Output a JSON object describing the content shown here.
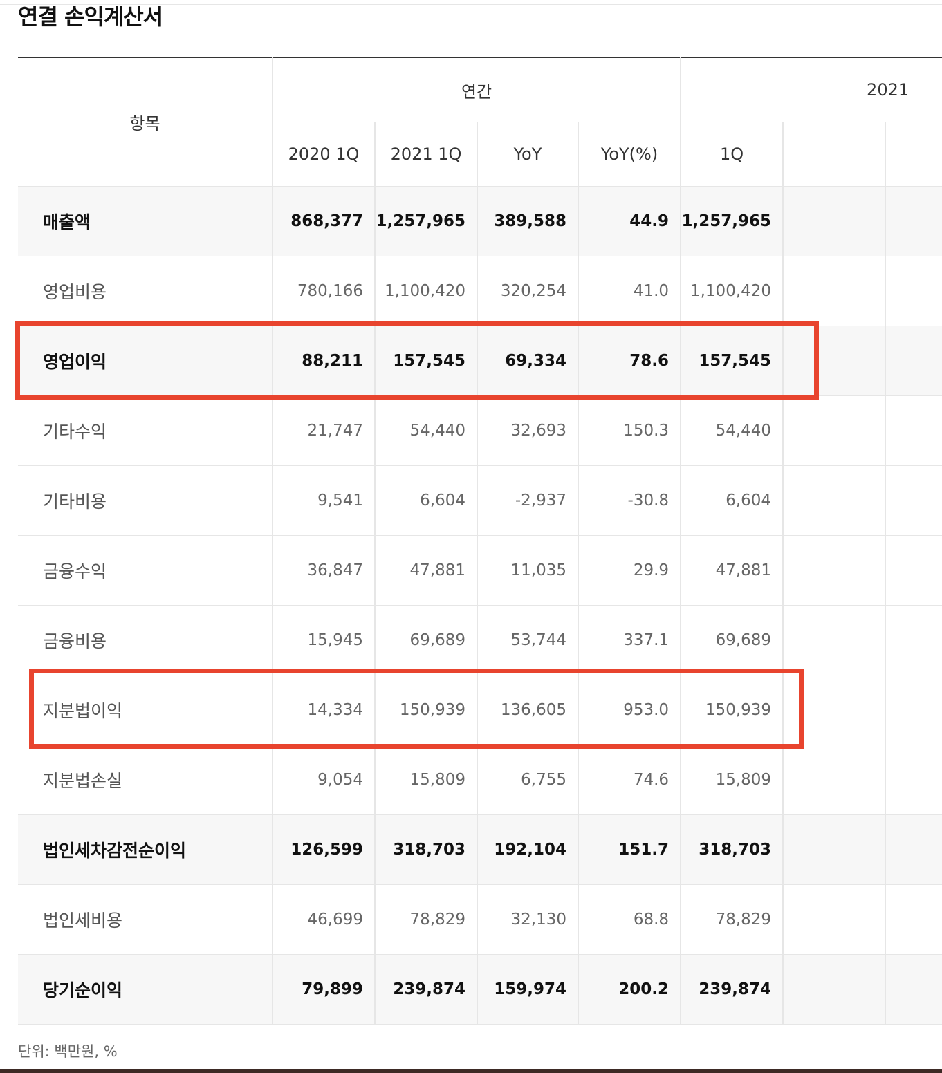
{
  "title": "연결 손익계산서",
  "header": {
    "item_label": "항목",
    "group_annual": "연간",
    "group_2021": "2021",
    "columns": [
      "2020 1Q",
      "2021 1Q",
      "YoY",
      "YoY(%)",
      "1Q"
    ]
  },
  "rows": [
    {
      "label": "매출액",
      "values": [
        "868,377",
        "1,257,965",
        "389,588",
        "44.9",
        "1,257,965"
      ],
      "emphasis": true
    },
    {
      "label": "영업비용",
      "values": [
        "780,166",
        "1,100,420",
        "320,254",
        "41.0",
        "1,100,420"
      ],
      "emphasis": false
    },
    {
      "label": "영업이익",
      "values": [
        "88,211",
        "157,545",
        "69,334",
        "78.6",
        "157,545"
      ],
      "emphasis": true,
      "highlighted": true
    },
    {
      "label": "기타수익",
      "values": [
        "21,747",
        "54,440",
        "32,693",
        "150.3",
        "54,440"
      ],
      "emphasis": false
    },
    {
      "label": "기타비용",
      "values": [
        "9,541",
        "6,604",
        "-2,937",
        "-30.8",
        "6,604"
      ],
      "emphasis": false
    },
    {
      "label": "금융수익",
      "values": [
        "36,847",
        "47,881",
        "11,035",
        "29.9",
        "47,881"
      ],
      "emphasis": false
    },
    {
      "label": "금융비용",
      "values": [
        "15,945",
        "69,689",
        "53,744",
        "337.1",
        "69,689"
      ],
      "emphasis": false
    },
    {
      "label": "지분법이익",
      "values": [
        "14,334",
        "150,939",
        "136,605",
        "953.0",
        "150,939"
      ],
      "emphasis": false,
      "highlighted": true
    },
    {
      "label": "지분법손실",
      "values": [
        "9,054",
        "15,809",
        "6,755",
        "74.6",
        "15,809"
      ],
      "emphasis": false
    },
    {
      "label": "법인세차감전순이익",
      "values": [
        "126,599",
        "318,703",
        "192,104",
        "151.7",
        "318,703"
      ],
      "emphasis": true
    },
    {
      "label": "법인세비용",
      "values": [
        "46,699",
        "78,829",
        "32,130",
        "68.8",
        "78,829"
      ],
      "emphasis": false
    },
    {
      "label": "당기순이익",
      "values": [
        "79,899",
        "239,874",
        "159,974",
        "200.2",
        "239,874"
      ],
      "emphasis": true
    }
  ],
  "unit_note": "단위: 백만원, %",
  "highlight_color": "#e8442e"
}
